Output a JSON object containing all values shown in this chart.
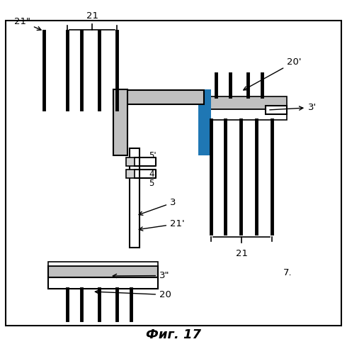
{
  "fig_label": "Фиг. 17",
  "figure_number": "7.",
  "bg_color": "#ffffff",
  "border_color": "#000000",
  "line_color": "#000000",
  "gray_color": "#c0c0c0",
  "dark_gray": "#888888",
  "labels": {
    "21_top": "21\"",
    "21_brace_top": "21",
    "21_brace_bottom": "21",
    "21_prime": "21'",
    "20_prime": "20'",
    "3_prime": "3'",
    "3_double_prime": "3\"",
    "20_bottom": "20",
    "3_arrow": "3",
    "4_label": "4",
    "5_label": "5",
    "5_prime": "5'",
    "7_label": "7."
  }
}
